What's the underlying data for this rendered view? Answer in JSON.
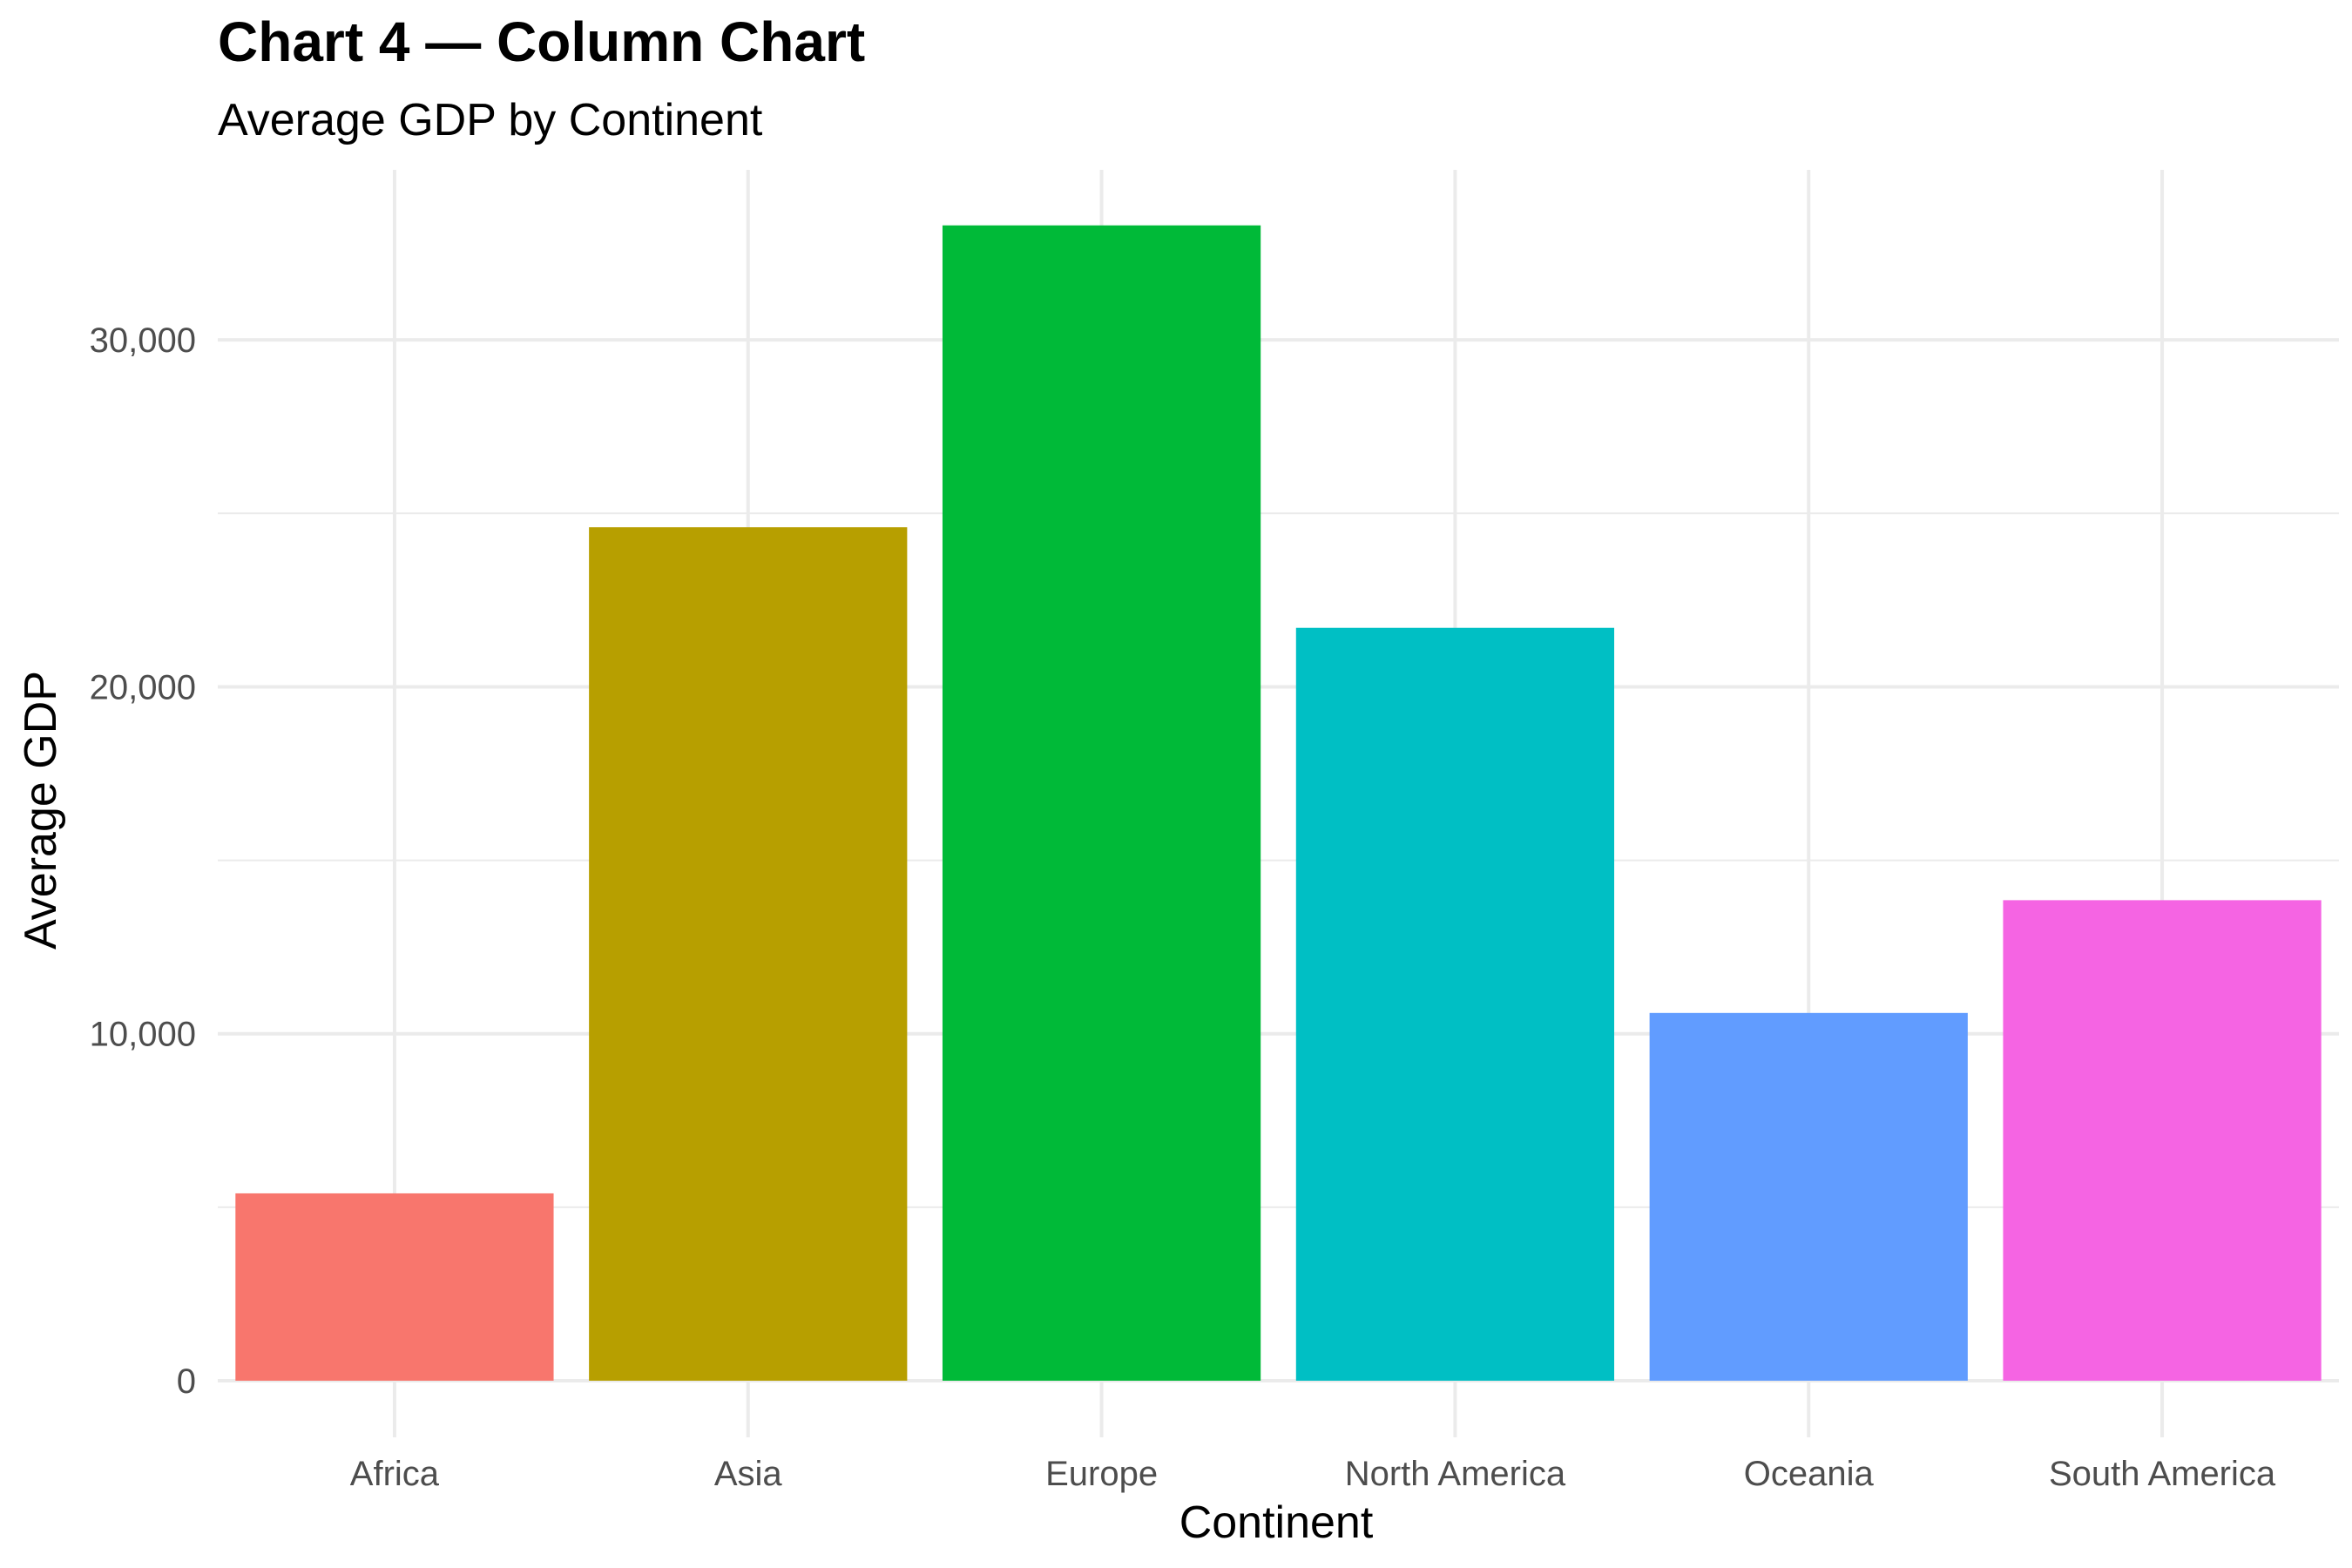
{
  "chart_data": {
    "type": "bar",
    "title": "Chart 4 — Column Chart",
    "subtitle": "Average GDP by Continent",
    "xlabel": "Continent",
    "ylabel": "Average GDP",
    "categories": [
      "Africa",
      "Asia",
      "Europe",
      "North America",
      "Oceania",
      "South America"
    ],
    "values": [
      5400,
      24600,
      33300,
      21700,
      10600,
      13850
    ],
    "colors": [
      "#F8766D",
      "#B79F00",
      "#00BA38",
      "#00BFC4",
      "#619CFF",
      "#F564E3"
    ],
    "ylim": [
      0,
      34900
    ],
    "yticks": [
      0,
      10000,
      20000,
      30000
    ],
    "ytick_labels": [
      "0",
      "10,000",
      "20,000",
      "30,000"
    ],
    "grid": true,
    "legend": "none"
  }
}
